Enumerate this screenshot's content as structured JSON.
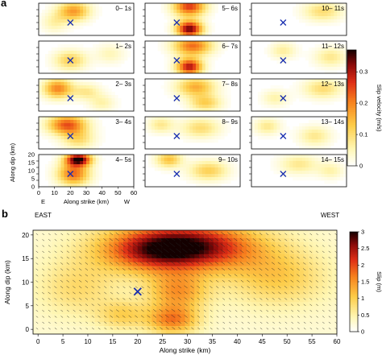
{
  "panel_a_label": "a",
  "panel_b_label": "b",
  "direction": {
    "east": "EAST",
    "west": "WEST"
  },
  "chart_data": [
    {
      "type": "heatmap",
      "name": "slip-velocity-snapshots",
      "panel": "a",
      "xlabel": "Along strike (km)",
      "ylabel": "Along dip (km)",
      "x_ticks": [
        0,
        10,
        20,
        30,
        40,
        50,
        60
      ],
      "y_ticks": [
        0,
        5,
        10,
        15,
        20
      ],
      "x_end_labels": {
        "left": "E",
        "right": "W"
      },
      "xlim": [
        0,
        60
      ],
      "ylim": [
        0,
        20
      ],
      "colorbar": {
        "label": "Slip velocity (m/s)",
        "ticks": [
          0,
          0.1,
          0.2,
          0.3
        ],
        "range": [
          0,
          0.37
        ]
      },
      "hypocenter": {
        "x": 20,
        "y": 8
      },
      "windows": [
        {
          "label": "0– 1s",
          "patches": [
            {
              "x": 22,
              "y": 15,
              "v": 0.18,
              "rx": 10,
              "ry": 6
            },
            {
              "x": 10,
              "y": 8,
              "v": 0.06,
              "rx": 8,
              "ry": 6
            }
          ]
        },
        {
          "label": "1– 2s",
          "patches": [
            {
              "x": 20,
              "y": 8,
              "v": 0.12,
              "rx": 10,
              "ry": 6
            },
            {
              "x": 45,
              "y": 12,
              "v": 0.05,
              "rx": 9,
              "ry": 6
            }
          ]
        },
        {
          "label": "2– 3s",
          "patches": [
            {
              "x": 12,
              "y": 14,
              "v": 0.2,
              "rx": 9,
              "ry": 6
            },
            {
              "x": 30,
              "y": 12,
              "v": 0.08,
              "rx": 9,
              "ry": 5
            },
            {
              "x": 40,
              "y": 5,
              "v": 0.06,
              "rx": 8,
              "ry": 5
            }
          ]
        },
        {
          "label": "3– 4s",
          "patches": [
            {
              "x": 18,
              "y": 15,
              "v": 0.24,
              "rx": 12,
              "ry": 6
            },
            {
              "x": 25,
              "y": 6,
              "v": 0.1,
              "rx": 10,
              "ry": 6
            }
          ]
        },
        {
          "label": "4– 5s",
          "patches": [
            {
              "x": 25,
              "y": 17,
              "v": 0.36,
              "rx": 8,
              "ry": 4
            },
            {
              "x": 22,
              "y": 8,
              "v": 0.22,
              "rx": 10,
              "ry": 7
            }
          ]
        },
        {
          "label": "5– 6s",
          "patches": [
            {
              "x": 28,
              "y": 18,
              "v": 0.26,
              "rx": 10,
              "ry": 6
            },
            {
              "x": 28,
              "y": 4,
              "v": 0.34,
              "rx": 8,
              "ry": 5
            }
          ]
        },
        {
          "label": "6– 7s",
          "patches": [
            {
              "x": 30,
              "y": 17,
              "v": 0.22,
              "rx": 12,
              "ry": 6
            },
            {
              "x": 28,
              "y": 4,
              "v": 0.3,
              "rx": 8,
              "ry": 5
            }
          ]
        },
        {
          "label": "7– 8s",
          "patches": [
            {
              "x": 32,
              "y": 15,
              "v": 0.16,
              "rx": 12,
              "ry": 6
            },
            {
              "x": 38,
              "y": 5,
              "v": 0.12,
              "rx": 10,
              "ry": 5
            }
          ]
        },
        {
          "label": "8– 9s",
          "patches": [
            {
              "x": 35,
              "y": 13,
              "v": 0.1,
              "rx": 12,
              "ry": 6
            },
            {
              "x": 10,
              "y": 15,
              "v": 0.08,
              "rx": 8,
              "ry": 5
            }
          ]
        },
        {
          "label": "9– 10s",
          "patches": [
            {
              "x": 15,
              "y": 17,
              "v": 0.14,
              "rx": 8,
              "ry": 5
            },
            {
              "x": 40,
              "y": 10,
              "v": 0.12,
              "rx": 12,
              "ry": 6
            }
          ]
        },
        {
          "label": "10– 11s",
          "patches": [
            {
              "x": 45,
              "y": 15,
              "v": 0.1,
              "rx": 12,
              "ry": 6
            }
          ]
        },
        {
          "label": "11– 12s",
          "patches": [
            {
              "x": 50,
              "y": 10,
              "v": 0.08,
              "rx": 10,
              "ry": 6
            },
            {
              "x": 20,
              "y": 14,
              "v": 0.07,
              "rx": 8,
              "ry": 5
            }
          ]
        },
        {
          "label": "12– 13s",
          "patches": [
            {
              "x": 45,
              "y": 14,
              "v": 0.1,
              "rx": 12,
              "ry": 6
            },
            {
              "x": 15,
              "y": 8,
              "v": 0.06,
              "rx": 8,
              "ry": 5
            }
          ]
        },
        {
          "label": "13– 14s",
          "patches": [
            {
              "x": 10,
              "y": 14,
              "v": 0.08,
              "rx": 8,
              "ry": 5
            },
            {
              "x": 40,
              "y": 8,
              "v": 0.08,
              "rx": 10,
              "ry": 6
            }
          ]
        },
        {
          "label": "14– 15s",
          "patches": [
            {
              "x": 30,
              "y": 14,
              "v": 0.08,
              "rx": 12,
              "ry": 6
            },
            {
              "x": 50,
              "y": 10,
              "v": 0.06,
              "rx": 8,
              "ry": 5
            }
          ]
        }
      ]
    },
    {
      "type": "heatmap",
      "name": "final-slip-distribution",
      "panel": "b",
      "xlabel": "Along strike (km)",
      "ylabel": "Along dip (km)",
      "x_ticks": [
        0,
        5,
        10,
        15,
        20,
        25,
        30,
        35,
        40,
        45,
        50,
        55,
        60
      ],
      "y_ticks": [
        0,
        5,
        10,
        15,
        20
      ],
      "xlim": [
        -1,
        60
      ],
      "ylim": [
        -1,
        21
      ],
      "colorbar": {
        "label": "Slip (m)",
        "ticks": [
          0,
          0.5,
          1,
          1.5,
          2,
          2.5,
          3
        ],
        "range": [
          0,
          3
        ]
      },
      "hypocenter": {
        "x": 20,
        "y": 8
      },
      "background_slip": 0.25,
      "patches": [
        {
          "x": 29,
          "y": 17.5,
          "slip": 2.8,
          "rx": 14,
          "ry": 5
        },
        {
          "x": 22,
          "y": 16,
          "slip": 0.6,
          "rx": 9,
          "ry": 4
        },
        {
          "x": 28,
          "y": 8,
          "slip": 1.2,
          "rx": 6,
          "ry": 4
        },
        {
          "x": 27,
          "y": 2,
          "slip": 1.4,
          "rx": 5,
          "ry": 3
        },
        {
          "x": 17,
          "y": 3,
          "slip": 0.7,
          "rx": 5,
          "ry": 3
        },
        {
          "x": 48,
          "y": 11,
          "slip": 0.8,
          "rx": 10,
          "ry": 6
        },
        {
          "x": 8,
          "y": 9,
          "slip": 0.6,
          "rx": 8,
          "ry": 6
        }
      ]
    }
  ]
}
